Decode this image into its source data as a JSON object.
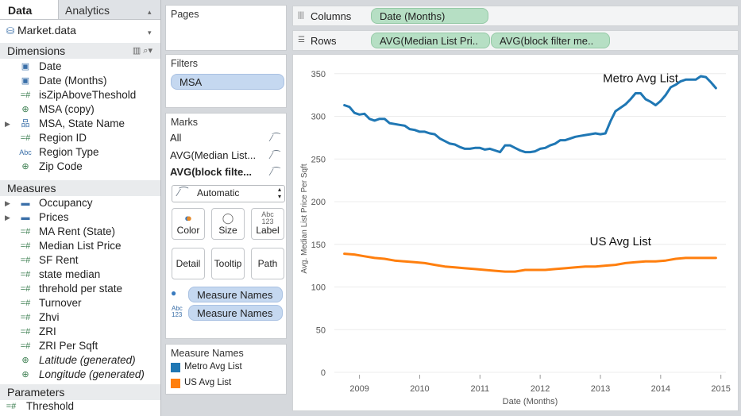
{
  "tabs": {
    "data": "Data",
    "analytics": "Analytics"
  },
  "datasource": "Market.data",
  "dimensions": {
    "heading": "Dimensions",
    "items": [
      {
        "icon": "calendar-icon",
        "label": "Date"
      },
      {
        "icon": "calendar-icon",
        "label": "Date (Months)"
      },
      {
        "icon": "hash-icon",
        "label": "isZipAboveTheshold"
      },
      {
        "icon": "globe-icon",
        "label": "MSA (copy)"
      },
      {
        "icon": "hierarchy-icon",
        "label": "MSA, State Name"
      },
      {
        "icon": "hash-icon",
        "label": "Region ID"
      },
      {
        "icon": "abc-icon",
        "label": "Region Type"
      },
      {
        "icon": "globe-icon",
        "label": "Zip Code"
      }
    ]
  },
  "measures": {
    "heading": "Measures",
    "items": [
      {
        "icon": "folder-icon",
        "label": "Occupancy"
      },
      {
        "icon": "folder-icon",
        "label": "Prices"
      },
      {
        "icon": "hash-icon",
        "label": "MA Rent (State)"
      },
      {
        "icon": "hash-icon",
        "label": "Median List Price"
      },
      {
        "icon": "hash-icon",
        "label": "SF Rent"
      },
      {
        "icon": "hash-icon",
        "label": "state median"
      },
      {
        "icon": "hash-icon",
        "label": "threhold per state"
      },
      {
        "icon": "hash-icon",
        "label": "Turnover"
      },
      {
        "icon": "hash-icon",
        "label": "Zhvi"
      },
      {
        "icon": "hash-icon",
        "label": "ZRI"
      },
      {
        "icon": "hash-icon",
        "label": "ZRI Per Sqft"
      },
      {
        "icon": "globe-icon",
        "label": "Latitude (generated)"
      },
      {
        "icon": "globe-icon",
        "label": "Longitude (generated)"
      }
    ]
  },
  "parameters": {
    "heading": "Parameters",
    "items": [
      {
        "icon": "hash-icon",
        "label": "Threshold"
      }
    ]
  },
  "pages": {
    "title": "Pages"
  },
  "filters": {
    "title": "Filters",
    "pill": "MSA"
  },
  "marks": {
    "title": "Marks",
    "rows": [
      "All",
      "AVG(Median List...",
      "AVG(block filte..."
    ],
    "mark_type": "Automatic",
    "buttons": [
      "Color",
      "Size",
      "Label",
      "Detail",
      "Tooltip",
      "Path"
    ],
    "color_pill": "Measure Names",
    "label_pill": "Measure Names"
  },
  "legend": {
    "title": "Measure Names",
    "items": [
      {
        "label": "Metro Avg List",
        "color": "#1f77b4"
      },
      {
        "label": "US Avg List",
        "color": "#ff7f0e"
      }
    ]
  },
  "columns_shelf": {
    "label": "Columns",
    "pill": "Date (Months)"
  },
  "rows_shelf": {
    "label": "Rows",
    "pills": [
      "AVG(Median List Pri..",
      "AVG(block filter me.."
    ]
  },
  "chart_data": {
    "type": "line",
    "xlabel": "Date (Months)",
    "ylabel": "Avg. Median List Price Per Sqft",
    "ylim": [
      0,
      360
    ],
    "yticks": [
      0,
      50,
      100,
      150,
      200,
      250,
      300,
      350
    ],
    "xticks": [
      "2009",
      "2010",
      "2011",
      "2012",
      "2013",
      "2014",
      "2015"
    ],
    "xlim": [
      "2008-08",
      "2015-02"
    ],
    "series": [
      {
        "name": "Metro Avg List",
        "color": "#1f77b4",
        "x": [
          "2008-10",
          "2008-11",
          "2008-12",
          "2009-01",
          "2009-02",
          "2009-03",
          "2009-04",
          "2009-05",
          "2009-06",
          "2009-07",
          "2009-08",
          "2009-09",
          "2009-10",
          "2009-11",
          "2009-12",
          "2010-01",
          "2010-02",
          "2010-03",
          "2010-04",
          "2010-05",
          "2010-06",
          "2010-07",
          "2010-08",
          "2010-09",
          "2010-10",
          "2010-11",
          "2010-12",
          "2011-01",
          "2011-02",
          "2011-03",
          "2011-04",
          "2011-05",
          "2011-06",
          "2011-07",
          "2011-08",
          "2011-09",
          "2011-10",
          "2011-11",
          "2011-12",
          "2012-01",
          "2012-02",
          "2012-03",
          "2012-04",
          "2012-05",
          "2012-06",
          "2012-07",
          "2012-08",
          "2012-09",
          "2012-10",
          "2012-11",
          "2012-12",
          "2013-01",
          "2013-02",
          "2013-03",
          "2013-04",
          "2013-05",
          "2013-06",
          "2013-07",
          "2013-08",
          "2013-09",
          "2013-10",
          "2013-11",
          "2013-12",
          "2014-01",
          "2014-02",
          "2014-03",
          "2014-04",
          "2014-05",
          "2014-06",
          "2014-07",
          "2014-08",
          "2014-09",
          "2014-10",
          "2014-11",
          "2014-12"
        ],
        "y": [
          313,
          311,
          304,
          302,
          303,
          297,
          295,
          297,
          297,
          292,
          291,
          290,
          289,
          285,
          284,
          282,
          282,
          280,
          279,
          274,
          271,
          268,
          267,
          264,
          262,
          262,
          263,
          263,
          261,
          262,
          260,
          258,
          266,
          266,
          263,
          260,
          258,
          258,
          259,
          262,
          263,
          266,
          268,
          272,
          272,
          274,
          276,
          277,
          278,
          279,
          280,
          279,
          280,
          294,
          306,
          310,
          314,
          320,
          327,
          327,
          320,
          317,
          313,
          318,
          325,
          334,
          337,
          341,
          343,
          343,
          343,
          347,
          346,
          340,
          333
        ]
      },
      {
        "name": "US Avg List",
        "color": "#ff7f0e",
        "x": [
          "2008-10",
          "2008-12",
          "2009-02",
          "2009-04",
          "2009-06",
          "2009-08",
          "2009-10",
          "2009-12",
          "2010-02",
          "2010-04",
          "2010-06",
          "2010-08",
          "2010-10",
          "2010-12",
          "2011-02",
          "2011-04",
          "2011-06",
          "2011-08",
          "2011-10",
          "2011-12",
          "2012-02",
          "2012-04",
          "2012-06",
          "2012-08",
          "2012-10",
          "2012-12",
          "2013-02",
          "2013-04",
          "2013-06",
          "2013-08",
          "2013-10",
          "2013-12",
          "2014-02",
          "2014-04",
          "2014-06",
          "2014-08",
          "2014-10",
          "2014-12"
        ],
        "y": [
          139,
          138,
          136,
          134,
          133,
          131,
          130,
          129,
          128,
          126,
          124,
          123,
          122,
          121,
          120,
          119,
          118,
          118,
          120,
          120,
          120,
          121,
          122,
          123,
          124,
          124,
          125,
          126,
          128,
          129,
          130,
          130,
          131,
          133,
          134,
          134,
          134,
          134
        ]
      }
    ],
    "annotations": [
      {
        "text": "Metro Avg List",
        "x": "2013-09",
        "y": 340
      },
      {
        "text": "US Avg List",
        "x": "2013-05",
        "y": 149
      }
    ]
  }
}
